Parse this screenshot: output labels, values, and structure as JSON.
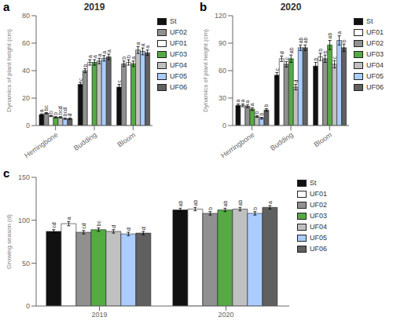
{
  "chart_data": [
    {
      "type": "bar",
      "panel_label": "a",
      "title": "2019",
      "ylabel": "Dynamics of plant height (cm)",
      "categories": [
        "Herringbone",
        "Budding",
        "Bloom"
      ],
      "series": [
        {
          "name": "St",
          "color": "#111111",
          "values": [
            8,
            30,
            28
          ],
          "errors": [
            0.5,
            1.5,
            2.0
          ],
          "letters": [
            "a",
            "c",
            "c"
          ]
        },
        {
          "name": "UF02",
          "color": "#909090",
          "values": [
            9,
            40,
            45
          ],
          "errors": [
            0.5,
            1.5,
            2.0
          ],
          "letters": [
            "bc",
            "b",
            "b"
          ]
        },
        {
          "name": "UF01",
          "color": "#ffffff",
          "values": [
            7,
            46,
            46
          ],
          "errors": [
            0.5,
            2.0,
            2.0
          ],
          "letters": [
            "b",
            "a",
            "b"
          ]
        },
        {
          "name": "UF03",
          "color": "#55aa44",
          "values": [
            6,
            46,
            45
          ],
          "errors": [
            0.5,
            2.0,
            2.0
          ],
          "letters": [
            "b",
            "a",
            "a"
          ]
        },
        {
          "name": "UF04",
          "color": "#c0c0c0",
          "values": [
            6,
            47,
            55
          ],
          "errors": [
            0.5,
            2.0,
            2.5
          ],
          "letters": [
            "bcd",
            "a",
            "a"
          ]
        },
        {
          "name": "UF05",
          "color": "#aaccff",
          "values": [
            5,
            49,
            54
          ],
          "errors": [
            0.5,
            2.0,
            2.5
          ],
          "letters": [
            "bcd",
            "a",
            "a"
          ]
        },
        {
          "name": "UF06",
          "color": "#606060",
          "values": [
            5,
            50,
            53
          ],
          "errors": [
            0.5,
            2.0,
            2.0
          ],
          "letters": [
            "d",
            "a",
            "a"
          ]
        }
      ],
      "ylim": [
        0,
        80
      ],
      "yticks": [
        0,
        20,
        40,
        60,
        80
      ],
      "grid": false,
      "legend": "right"
    },
    {
      "type": "bar",
      "panel_label": "b",
      "title": "2020",
      "ylabel": "Dynamics of plant height (cm)",
      "categories": [
        "Herringbone",
        "Budding",
        "Bloom"
      ],
      "series": [
        {
          "name": "St",
          "color": "#111111",
          "values": [
            22,
            55,
            65
          ],
          "errors": [
            1.5,
            3.0,
            4.0
          ],
          "letters": [
            "a",
            "c",
            "b"
          ]
        },
        {
          "name": "UF01",
          "color": "#ffffff",
          "values": [
            22,
            73,
            75
          ],
          "errors": [
            1.5,
            3.0,
            4.0
          ],
          "letters": [
            "a",
            "d",
            "b"
          ]
        },
        {
          "name": "UF02",
          "color": "#909090",
          "values": [
            21,
            67,
            73
          ],
          "errors": [
            1.5,
            3.0,
            4.0
          ],
          "letters": [
            "a",
            "c",
            "b"
          ]
        },
        {
          "name": "UF03",
          "color": "#55aa44",
          "values": [
            18,
            73,
            88
          ],
          "errors": [
            1.5,
            4.0,
            5.0
          ],
          "letters": [
            "a",
            "ab",
            "ab"
          ]
        },
        {
          "name": "UF04",
          "color": "#c0c0c0",
          "values": [
            10,
            42,
            67
          ],
          "errors": [
            1.0,
            3.0,
            4.0
          ],
          "letters": [
            "b",
            "d",
            "c"
          ]
        },
        {
          "name": "UF05",
          "color": "#aaccff",
          "values": [
            8,
            85,
            93
          ],
          "errors": [
            1.0,
            3.0,
            5.0
          ],
          "letters": [
            "b",
            "ab",
            "a"
          ]
        },
        {
          "name": "UF06",
          "color": "#606060",
          "values": [
            17,
            85,
            85
          ],
          "errors": [
            1.5,
            3.0,
            4.0
          ],
          "letters": [
            "b",
            "ab",
            "b"
          ]
        }
      ],
      "ylim": [
        0,
        120
      ],
      "yticks": [
        0,
        30,
        60,
        90,
        120
      ],
      "grid": false,
      "legend": "right"
    },
    {
      "type": "bar",
      "panel_label": "c",
      "ylabel": "Growing season (d)",
      "categories": [
        "2019",
        "2020"
      ],
      "series": [
        {
          "name": "St",
          "color": "#111111",
          "values": [
            87,
            112
          ],
          "errors": [
            2.0,
            2.0
          ],
          "letters": [
            "cd",
            "ab"
          ]
        },
        {
          "name": "UF01",
          "color": "#ffffff",
          "values": [
            96,
            113
          ],
          "errors": [
            2.5,
            2.0
          ],
          "letters": [
            "a",
            "ab"
          ]
        },
        {
          "name": "UF02",
          "color": "#909090",
          "values": [
            86,
            108
          ],
          "errors": [
            2.0,
            2.0
          ],
          "letters": [
            "cd",
            "b"
          ]
        },
        {
          "name": "UF03",
          "color": "#55aa44",
          "values": [
            89,
            112
          ],
          "errors": [
            2.0,
            2.0
          ],
          "letters": [
            "bc",
            "ab"
          ]
        },
        {
          "name": "UF04",
          "color": "#c0c0c0",
          "values": [
            87,
            113
          ],
          "errors": [
            2.0,
            2.0
          ],
          "letters": [
            "d",
            "ab"
          ]
        },
        {
          "name": "UF05",
          "color": "#aaccff",
          "values": [
            84,
            108
          ],
          "errors": [
            2.0,
            2.0
          ],
          "letters": [
            "d",
            "b"
          ]
        },
        {
          "name": "UF06",
          "color": "#606060",
          "values": [
            85,
            115
          ],
          "errors": [
            2.0,
            2.0
          ],
          "letters": [
            "d",
            "a"
          ]
        }
      ],
      "ylim": [
        0,
        150
      ],
      "yticks": [
        0,
        50,
        100,
        150
      ],
      "grid": false,
      "legend": "right"
    }
  ]
}
